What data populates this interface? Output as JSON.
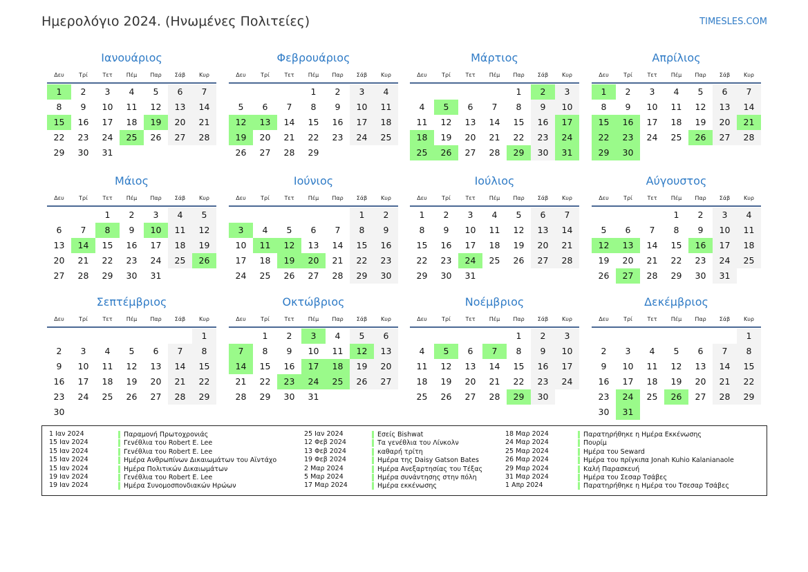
{
  "header": {
    "title": "Ημερολόγιο 2024. (Ηνωμένες Πολιτείες)",
    "brand": "TIMESLES.COM",
    "year": 2024
  },
  "colors": {
    "accent": "#2f7bc6",
    "holiday": "#9afa8a",
    "weekend": "#f3f3f3",
    "rule": "#4a6894"
  },
  "weekdays": [
    "Δευ",
    "Τρί",
    "Τετ",
    "Πέμ",
    "Παρ",
    "Σάβ",
    "Κυρ"
  ],
  "months": [
    {
      "name": "Ιανουάριος",
      "holidays": [
        1,
        15,
        19,
        25
      ]
    },
    {
      "name": "Φεβρουάριος",
      "holidays": [
        12,
        13,
        19
      ]
    },
    {
      "name": "Μάρτιος",
      "holidays": [
        2,
        5,
        17,
        18,
        24,
        25,
        26,
        29,
        31
      ]
    },
    {
      "name": "Απρίλιος",
      "holidays": [
        1,
        15,
        16,
        21,
        22,
        23,
        26,
        29,
        30
      ]
    },
    {
      "name": "Μάιος",
      "holidays": [
        8,
        10,
        14,
        26
      ]
    },
    {
      "name": "Ιούνιος",
      "holidays": [
        3,
        11,
        12,
        19,
        20
      ]
    },
    {
      "name": "Ιούλιος",
      "holidays": [
        24
      ]
    },
    {
      "name": "Αύγουστος",
      "holidays": [
        12,
        13,
        16,
        27
      ]
    },
    {
      "name": "Σεπτέμβριος",
      "holidays": []
    },
    {
      "name": "Οκτώβριος",
      "holidays": [
        3,
        7,
        12,
        14,
        17,
        18,
        23,
        24,
        25
      ]
    },
    {
      "name": "Νοέμβριος",
      "holidays": [
        5,
        7,
        29
      ]
    },
    {
      "name": "Δεκέμβριος",
      "holidays": [
        24,
        26,
        31
      ]
    }
  ],
  "legend": [
    [
      {
        "date": "1 Ιαν 2024",
        "name": "Παραμονή Πρωτοχρονιάς"
      },
      {
        "date": "15 Ιαν 2024",
        "name": "Γενέθλια του Robert E. Lee"
      },
      {
        "date": "15 Ιαν 2024",
        "name": "Γενέθλια του Robert E. Lee"
      },
      {
        "date": "15 Ιαν 2024",
        "name": "Ημέρα Ανθρωπίνων Δικαιωμάτων του Αϊντάχο"
      },
      {
        "date": "15 Ιαν 2024",
        "name": "Ημέρα Πολιτικών Δικαιωμάτων"
      },
      {
        "date": "19 Ιαν 2024",
        "name": "Γενέθλια του Robert E. Lee"
      },
      {
        "date": "19 Ιαν 2024",
        "name": "Ημέρα Συνομοσπονδιακών Ηρώων"
      }
    ],
    [
      {
        "date": "25 Ιαν 2024",
        "name": "Εσείς Bishwat"
      },
      {
        "date": "12 Φεβ 2024",
        "name": "Τα γενέθλια του Λίνκολν"
      },
      {
        "date": "13 Φεβ 2024",
        "name": "καθαρή τρίτη"
      },
      {
        "date": "19 Φεβ 2024",
        "name": "Ημέρα της Daisy Gatson Bates"
      },
      {
        "date": "2 Μαρ 2024",
        "name": "Ημέρα Ανεξαρτησίας του Τέξας"
      },
      {
        "date": "5 Μαρ 2024",
        "name": "Ημέρα συνάντησης στην πόλη"
      },
      {
        "date": "17 Μαρ 2024",
        "name": "Ημέρα εκκένωσης"
      }
    ],
    [
      {
        "date": "18 Μαρ 2024",
        "name": "Παρατηρήθηκε η Ημέρα Εκκένωσης"
      },
      {
        "date": "24 Μαρ 2024",
        "name": "Πουρίμ"
      },
      {
        "date": "25 Μαρ 2024",
        "name": "Ημέρα του Seward"
      },
      {
        "date": "26 Μαρ 2024",
        "name": "Ημέρα του πρίγκιπα Jonah Kuhio Kalanianaole"
      },
      {
        "date": "29 Μαρ 2024",
        "name": "Καλή Παρασκευή"
      },
      {
        "date": "31 Μαρ 2024",
        "name": "Ημέρα του Σεσαρ Τσάβες"
      },
      {
        "date": "1 Απρ 2024",
        "name": "Παρατηρήθηκε η Ημέρα του Τσεσαρ Τσάβες"
      }
    ]
  ]
}
